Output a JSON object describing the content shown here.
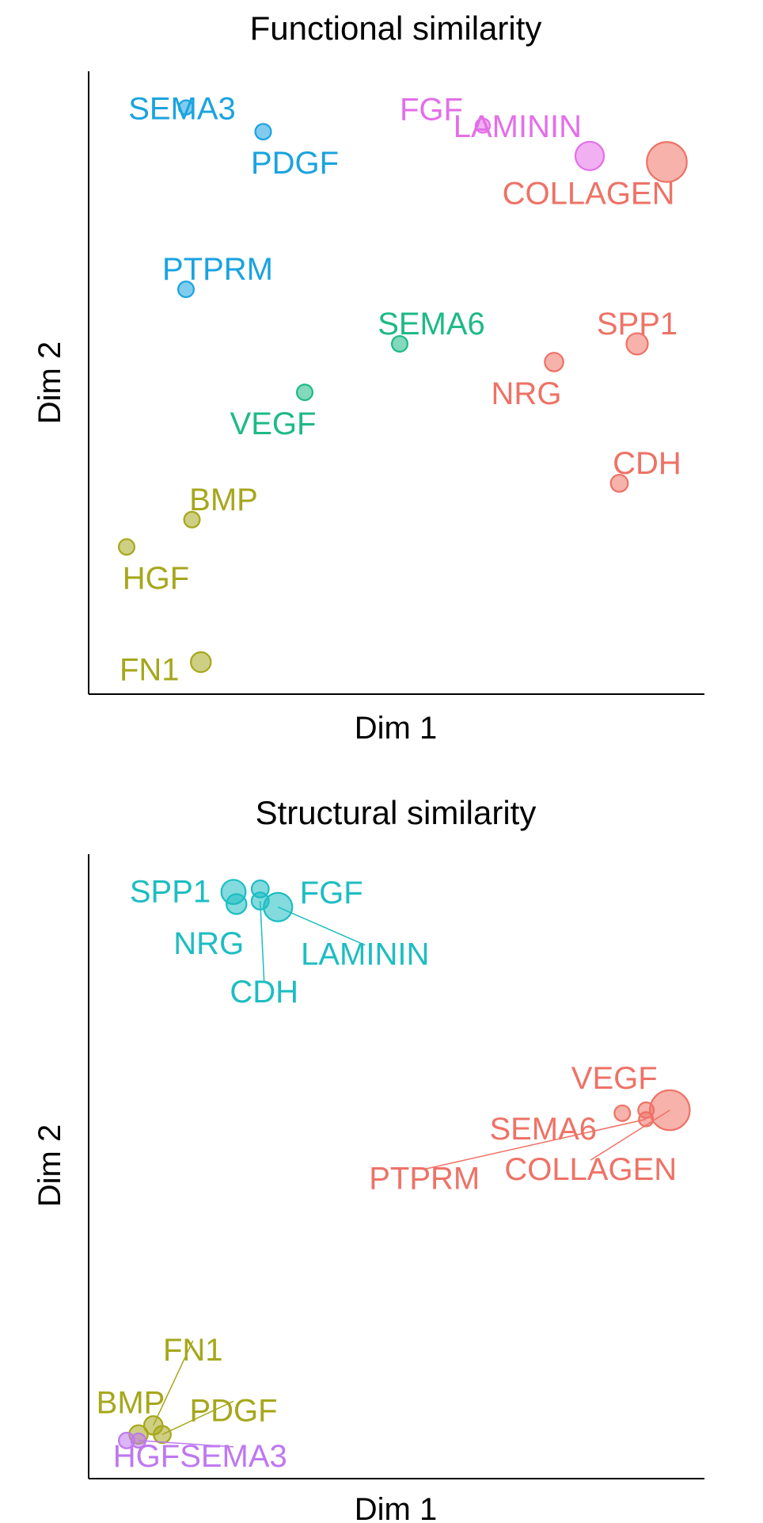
{
  "chart_data": [
    {
      "type": "scatter",
      "title": "Functional similarity",
      "xlabel": "Dim 1",
      "ylabel": "Dim 2",
      "xlim": [
        0.0,
        1.0
      ],
      "ylim": [
        0.0,
        1.0
      ],
      "grid": false,
      "ticks": false,
      "points": [
        {
          "label": "SEMA3",
          "x": 0.14,
          "y": 0.96,
          "size": 1.0,
          "group": "blue"
        },
        {
          "label": "PDGF",
          "x": 0.27,
          "y": 0.92,
          "size": 1.1,
          "group": "blue"
        },
        {
          "label": "PTPRM",
          "x": 0.14,
          "y": 0.66,
          "size": 1.1,
          "group": "blue"
        },
        {
          "label": "FGF",
          "x": 0.64,
          "y": 0.93,
          "size": 1.0,
          "group": "magenta"
        },
        {
          "label": "LAMININ",
          "x": 0.82,
          "y": 0.88,
          "size": 2.0,
          "group": "magenta"
        },
        {
          "label": "COLLAGEN",
          "x": 0.95,
          "y": 0.87,
          "size": 2.8,
          "group": "red"
        },
        {
          "label": "SEMA6",
          "x": 0.5,
          "y": 0.57,
          "size": 1.1,
          "group": "green"
        },
        {
          "label": "VEGF",
          "x": 0.34,
          "y": 0.49,
          "size": 1.1,
          "group": "green"
        },
        {
          "label": "SPP1",
          "x": 0.9,
          "y": 0.57,
          "size": 1.5,
          "group": "red"
        },
        {
          "label": "NRG",
          "x": 0.76,
          "y": 0.54,
          "size": 1.3,
          "group": "red"
        },
        {
          "label": "CDH",
          "x": 0.87,
          "y": 0.34,
          "size": 1.2,
          "group": "red"
        },
        {
          "label": "BMP",
          "x": 0.15,
          "y": 0.28,
          "size": 1.1,
          "group": "olive"
        },
        {
          "label": "HGF",
          "x": 0.04,
          "y": 0.235,
          "size": 1.1,
          "group": "olive"
        },
        {
          "label": "FN1",
          "x": 0.165,
          "y": 0.045,
          "size": 1.4,
          "group": "olive"
        }
      ]
    },
    {
      "type": "scatter",
      "title": "Structural similarity",
      "xlabel": "Dim 1",
      "ylabel": "Dim 2",
      "xlim": [
        0.0,
        1.0
      ],
      "ylim": [
        0.0,
        1.0
      ],
      "grid": false,
      "ticks": false,
      "points": [
        {
          "label": "SPP1",
          "x": 0.22,
          "y": 0.96,
          "size": 1.7,
          "group": "teal"
        },
        {
          "label": "FGF",
          "x": 0.265,
          "y": 0.965,
          "size": 1.2,
          "group": "teal"
        },
        {
          "label": "NRG",
          "x": 0.225,
          "y": 0.94,
          "size": 1.4,
          "group": "teal"
        },
        {
          "label": "CDH",
          "x": 0.265,
          "y": 0.945,
          "size": 1.2,
          "group": "teal"
        },
        {
          "label": "LAMININ",
          "x": 0.295,
          "y": 0.935,
          "size": 2.0,
          "group": "teal"
        },
        {
          "label": "VEGF",
          "x": 0.915,
          "y": 0.6,
          "size": 1.1,
          "group": "red"
        },
        {
          "label": "SEMA6",
          "x": 0.875,
          "y": 0.595,
          "size": 1.1,
          "group": "red"
        },
        {
          "label": "PTPRM",
          "x": 0.915,
          "y": 0.585,
          "size": 1.0,
          "group": "red"
        },
        {
          "label": "COLLAGEN",
          "x": 0.955,
          "y": 0.6,
          "size": 2.8,
          "group": "red"
        },
        {
          "label": "FN1",
          "x": 0.085,
          "y": 0.08,
          "size": 1.3,
          "group": "olive"
        },
        {
          "label": "BMP",
          "x": 0.06,
          "y": 0.065,
          "size": 1.3,
          "group": "olive"
        },
        {
          "label": "PDGF",
          "x": 0.1,
          "y": 0.065,
          "size": 1.2,
          "group": "olive"
        },
        {
          "label": "HGF",
          "x": 0.04,
          "y": 0.055,
          "size": 1.1,
          "group": "violet"
        },
        {
          "label": "SEMA3",
          "x": 0.06,
          "y": 0.055,
          "size": 1.0,
          "group": "violet"
        }
      ]
    }
  ],
  "colors": {
    "blue": "#1AA3E0",
    "magenta": "#E36FE8",
    "red": "#EE7266",
    "green": "#1DBA85",
    "olive": "#A6A71B",
    "teal": "#1DBDC2",
    "violet": "#BF78F0",
    "axis": "#000000",
    "text": "#000000"
  }
}
